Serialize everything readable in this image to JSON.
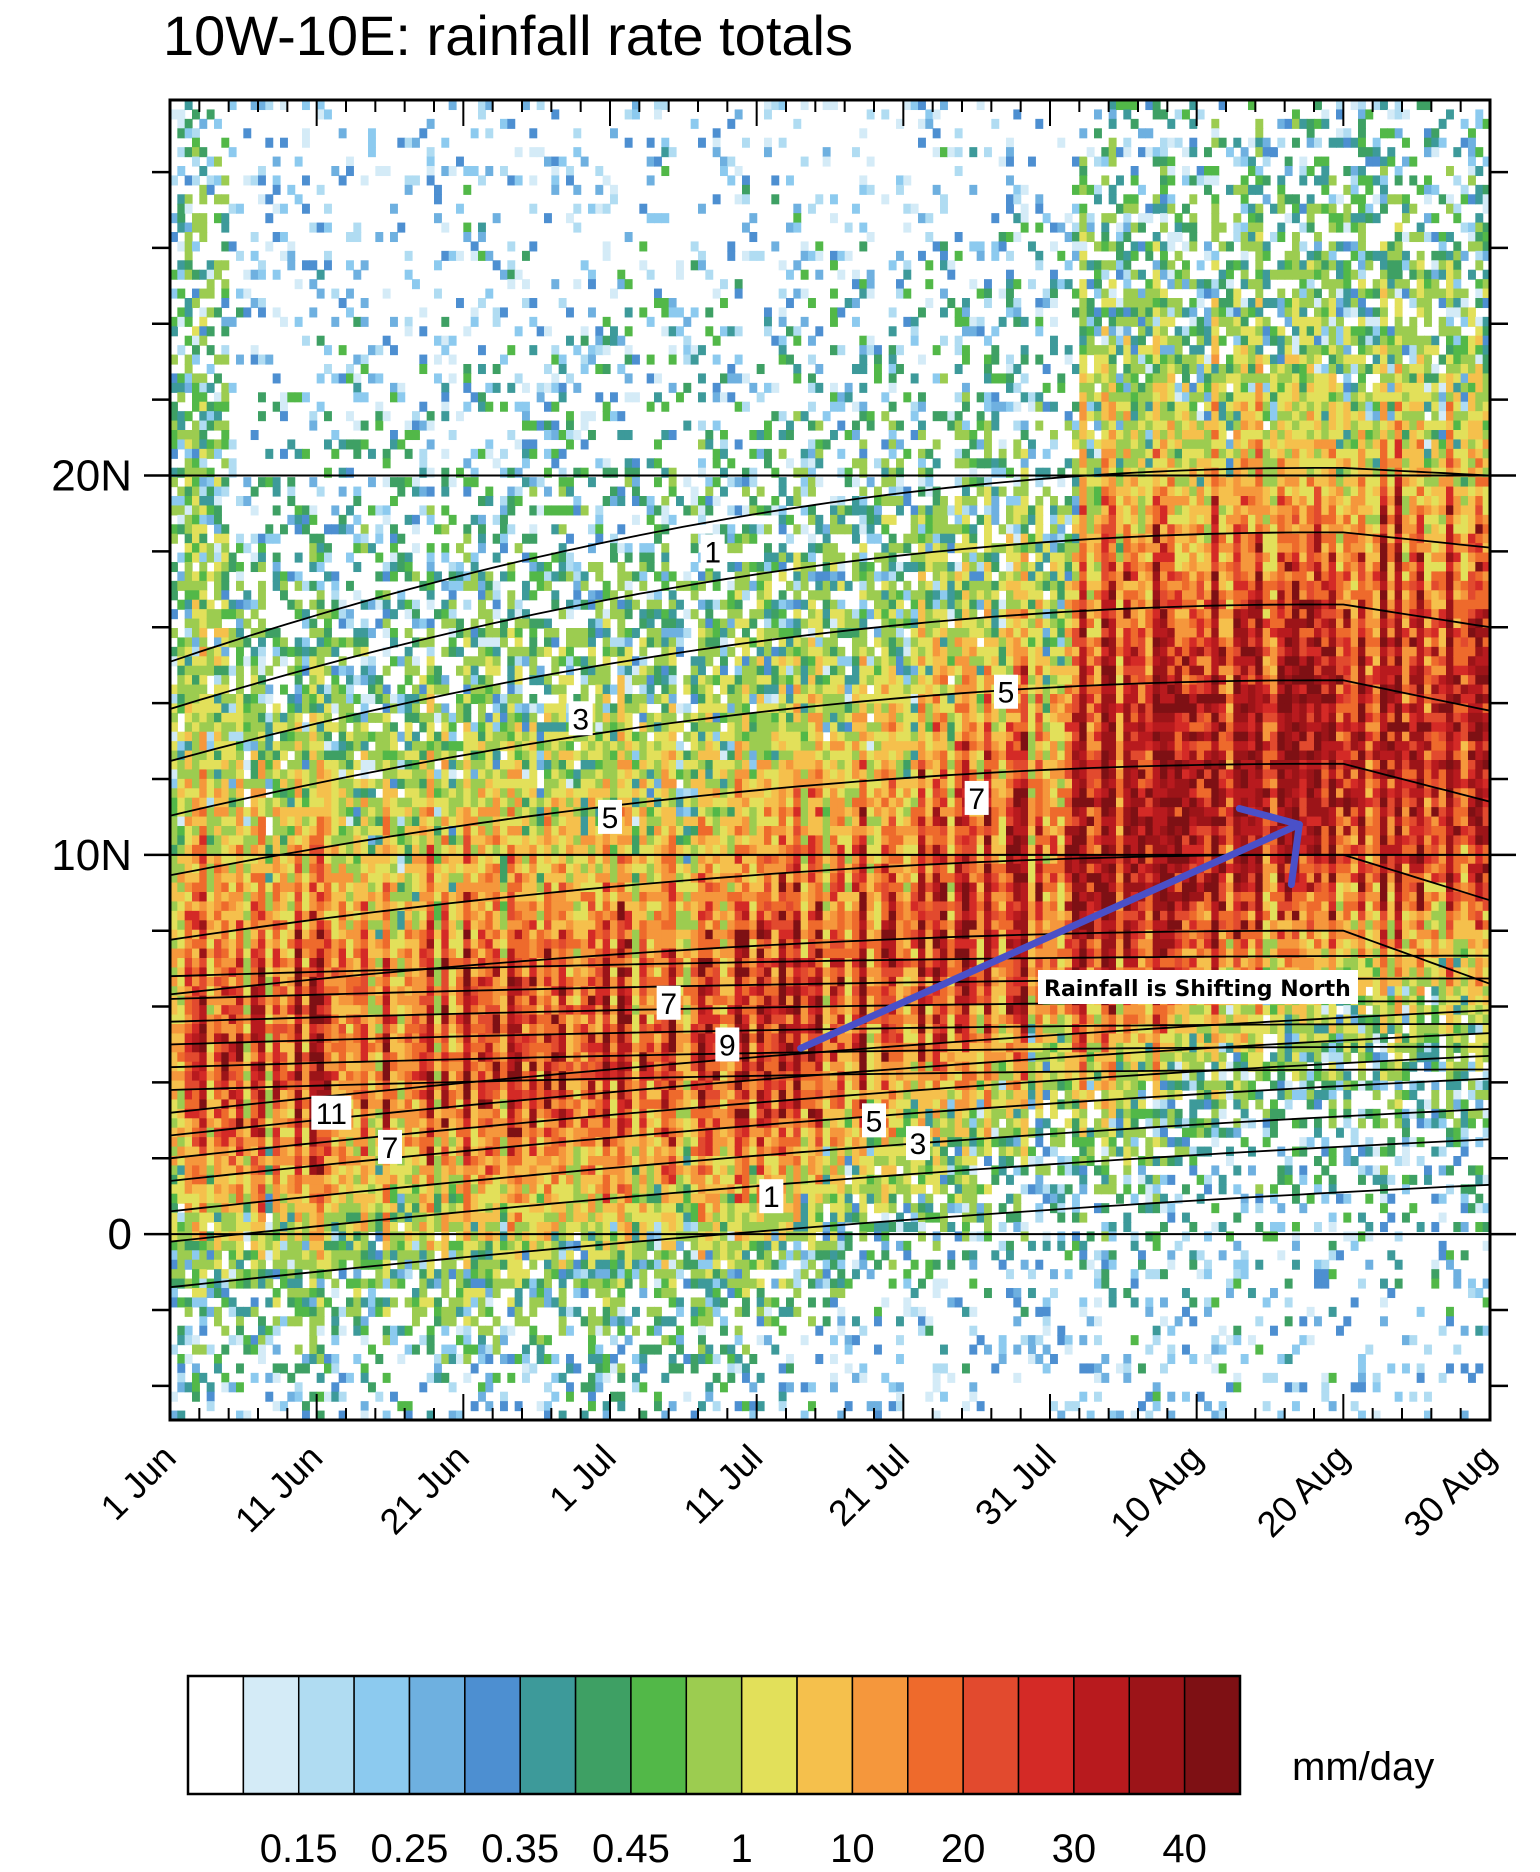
{
  "chart_data": {
    "type": "heatmap",
    "title": "10W-10E: rainfall rate totals",
    "x_tick_labels": [
      "1 Jun",
      "11 Jun",
      "21 Jun",
      "1 Jul",
      "11 Jul",
      "21 Jul",
      "31 Jul",
      "10 Aug",
      "20 Aug",
      "30 Aug"
    ],
    "x_tick_days": [
      0,
      10,
      20,
      30,
      40,
      50,
      60,
      70,
      80,
      90
    ],
    "xlim": [
      0,
      90
    ],
    "y_tick_labels": [
      "0",
      "10N",
      "20N"
    ],
    "y_tick_values": [
      0,
      10,
      20
    ],
    "ylim": [
      -4.9,
      29.9
    ],
    "colorbar": {
      "units": "mm/day",
      "tick_labels": [
        "0.15",
        "0.25",
        "0.35",
        "0.45",
        "1",
        "10",
        "20",
        "30",
        "40"
      ],
      "levels": [
        0.1,
        0.15,
        0.2,
        0.25,
        0.3,
        0.35,
        0.4,
        0.45,
        0.5,
        1,
        5,
        10,
        15,
        20,
        25,
        30,
        35,
        40
      ],
      "colors": [
        "#ffffff",
        "#d4ebf7",
        "#b0dcf2",
        "#8ccaef",
        "#6eb0e0",
        "#4d8fd1",
        "#3d9a9a",
        "#3ea064",
        "#52b848",
        "#9ccc50",
        "#e2e05a",
        "#f5c04c",
        "#f5973c",
        "#ee6a2c",
        "#e24a2e",
        "#d42a26",
        "#b81a1e",
        "#9c1418",
        "#7e1014"
      ]
    },
    "contour_lines": {
      "label_values": [
        1,
        3,
        5,
        5,
        7,
        7,
        9,
        11,
        7,
        5,
        3,
        1
      ]
    },
    "annotations": [
      {
        "text": "Rainfall is Shifting  North",
        "arrow_from": {
          "day": 43,
          "lat": 4.9
        },
        "arrow_to": {
          "day": 77,
          "lat": 10.8
        }
      }
    ]
  }
}
